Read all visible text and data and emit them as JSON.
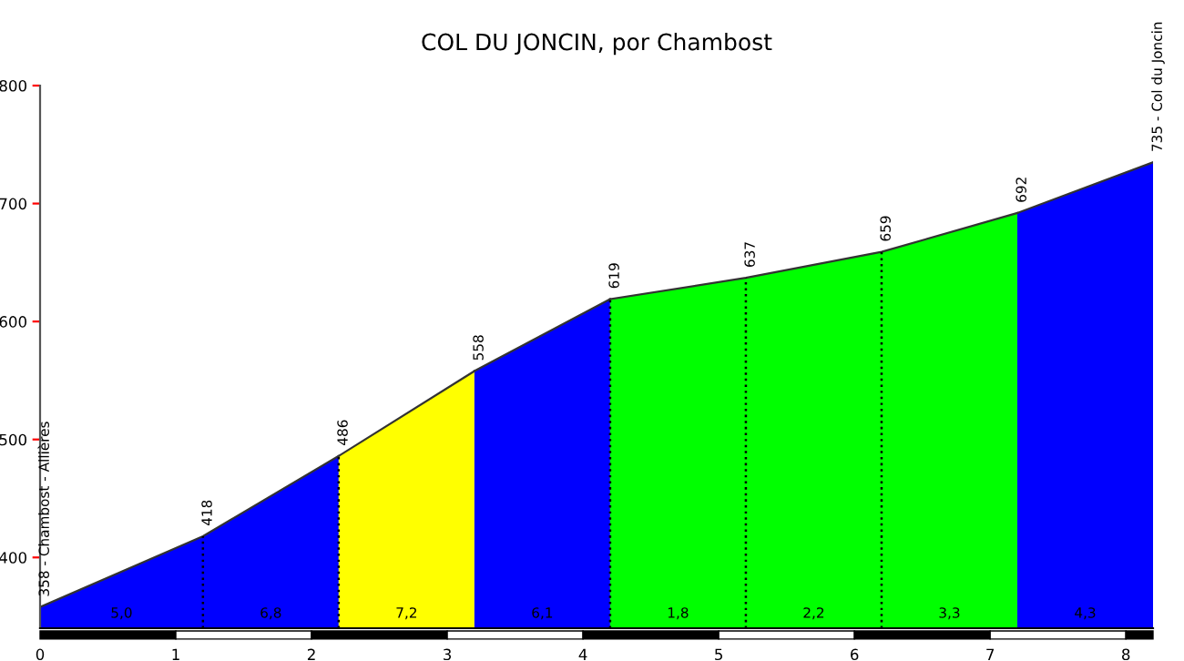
{
  "chart_data": {
    "type": "area",
    "title": "COL DU JONCIN, por Chambost",
    "series": [
      {
        "color": "#0000ff",
        "x": [
          0,
          1.2,
          2.2
        ],
        "values": [
          358,
          418,
          486
        ]
      },
      {
        "color": "#ffff00",
        "x": [
          2.2,
          3.2
        ],
        "values": [
          486,
          558
        ]
      },
      {
        "color": "#0000ff",
        "x": [
          3.2,
          4.2
        ],
        "values": [
          558,
          619
        ]
      },
      {
        "color": "#00ff00",
        "x": [
          4.2,
          5.2,
          6.2,
          7.2
        ],
        "values": [
          619,
          637,
          659,
          692
        ]
      },
      {
        "color": "#0000ff",
        "x": [
          7.2,
          8.2
        ],
        "values": [
          692,
          735
        ]
      }
    ],
    "xlim": [
      0,
      8.2
    ],
    "xticks": [
      0,
      1,
      2,
      3,
      4,
      5,
      6,
      7,
      8
    ],
    "ylim": [
      340,
      800
    ],
    "yticks": [
      400,
      500,
      600,
      700,
      800
    ],
    "grid": false,
    "ref_lines": [
      {
        "axis": "x",
        "value": 1.2,
        "color": "#000000",
        "line_style": "dotted"
      },
      {
        "axis": "x",
        "value": 2.2,
        "color": "#000000",
        "line_style": "dotted"
      },
      {
        "axis": "x",
        "value": 4.2,
        "color": "#000000",
        "line_style": "dotted"
      },
      {
        "axis": "x",
        "value": 5.2,
        "color": "#000000",
        "line_style": "dotted"
      },
      {
        "axis": "x",
        "value": 6.2,
        "color": "#000000",
        "line_style": "dotted"
      }
    ],
    "annotations": [
      {
        "text": "358 - Chambost - Allières",
        "x": 0,
        "y": 358
      },
      {
        "text": "418",
        "x": 1.2,
        "y": 418
      },
      {
        "text": "486",
        "x": 2.2,
        "y": 486
      },
      {
        "text": "558",
        "x": 3.2,
        "y": 558
      },
      {
        "text": "619",
        "x": 4.2,
        "y": 619
      },
      {
        "text": "637",
        "x": 5.2,
        "y": 637
      },
      {
        "text": "659",
        "x": 6.2,
        "y": 659
      },
      {
        "text": "692",
        "x": 7.2,
        "y": 692
      },
      {
        "text": "735 - Col du Joncin",
        "x": 8.2,
        "y": 735
      },
      {
        "text": "5,0",
        "x": 0.6,
        "y": 340
      },
      {
        "text": "6,8",
        "x": 1.7,
        "y": 340
      },
      {
        "text": "7,2",
        "x": 2.7,
        "y": 340
      },
      {
        "text": "6,1",
        "x": 3.7,
        "y": 340
      },
      {
        "text": "1,8",
        "x": 4.7,
        "y": 340
      },
      {
        "text": "2,2",
        "x": 5.7,
        "y": 340
      },
      {
        "text": "3,3",
        "x": 6.7,
        "y": 340
      },
      {
        "text": "4,3",
        "x": 7.7,
        "y": 340
      }
    ]
  }
}
